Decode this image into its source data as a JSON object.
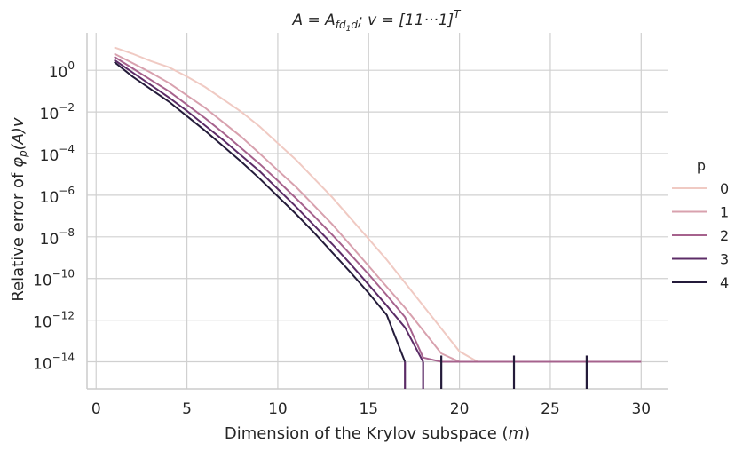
{
  "chart_data": {
    "type": "line",
    "title": {
      "prefix": "A = A",
      "sub": "fd",
      "sub2": "1",
      "sub3": "d",
      "suffix": "; v = [11···1]",
      "sup": "T"
    },
    "xlabel": {
      "text": "Dimension of the Krylov subspace (",
      "var": "m",
      "end": ")"
    },
    "ylabel": {
      "text": "Relative error of ",
      "phi": "φ",
      "sub": "p",
      "end": "(A)v"
    },
    "xlim": [
      -0.5,
      31.5
    ],
    "ylim_log10": [
      -15.3,
      1.8
    ],
    "x_ticks": [
      0,
      5,
      10,
      15,
      20,
      25,
      30
    ],
    "y_ticks": [
      {
        "base": "10",
        "exp": "0",
        "log": 0
      },
      {
        "base": "10",
        "exp": "−2",
        "log": -2
      },
      {
        "base": "10",
        "exp": "−4",
        "log": -4
      },
      {
        "base": "10",
        "exp": "−6",
        "log": -6
      },
      {
        "base": "10",
        "exp": "−8",
        "log": -8
      },
      {
        "base": "10",
        "exp": "−10",
        "log": -10
      },
      {
        "base": "10",
        "exp": "−12",
        "log": -12
      },
      {
        "base": "10",
        "exp": "−14",
        "log": -14
      }
    ],
    "grid": true,
    "legend": {
      "title": "p",
      "placement": "right"
    },
    "series": [
      {
        "name": "0",
        "color": "#f0cac3",
        "x": [
          1,
          2,
          3,
          4,
          5,
          6,
          7,
          8,
          9,
          10,
          11,
          12,
          13,
          14,
          15,
          16,
          17,
          18,
          19,
          20,
          21,
          22,
          23,
          24,
          25,
          26,
          27,
          28,
          29,
          30
        ],
        "log10_y": [
          1.1,
          0.8,
          0.45,
          0.15,
          -0.3,
          -0.8,
          -1.4,
          -2.0,
          -2.7,
          -3.5,
          -4.3,
          -5.2,
          -6.1,
          -7.1,
          -8.1,
          -9.1,
          -10.2,
          -11.3,
          -12.4,
          -13.5,
          -14.0,
          -14.0,
          -14.0,
          -14.0,
          -14.0,
          -14.0,
          -14.0,
          -14.0,
          -14.0,
          -14.0
        ]
      },
      {
        "name": "1",
        "color": "#d8a1ae",
        "x": [
          1,
          2,
          3,
          4,
          5,
          6,
          7,
          8,
          9,
          10,
          11,
          12,
          13,
          14,
          15,
          16,
          17,
          18,
          19,
          20,
          21,
          22,
          23,
          24,
          25,
          26,
          27,
          28,
          29,
          30
        ],
        "log10_y": [
          0.8,
          0.35,
          -0.1,
          -0.6,
          -1.2,
          -1.8,
          -2.5,
          -3.2,
          -4.0,
          -4.8,
          -5.6,
          -6.5,
          -7.4,
          -8.4,
          -9.4,
          -10.4,
          -11.4,
          -12.5,
          -13.6,
          -14.0,
          -14.0,
          -14.0,
          -14.0,
          -14.0,
          -14.0,
          -14.0,
          -14.0,
          -14.0,
          -14.0,
          -14.0
        ]
      },
      {
        "name": "2",
        "color": "#a6628d",
        "x": [
          1,
          2,
          3,
          4,
          5,
          6,
          7,
          8,
          9,
          10,
          11,
          12,
          13,
          14,
          15,
          16,
          17,
          18,
          19,
          20,
          21,
          22,
          23,
          24,
          25,
          26,
          27,
          28,
          29,
          30
        ],
        "log10_y": [
          0.65,
          0.1,
          -0.45,
          -1.0,
          -1.65,
          -2.3,
          -3.0,
          -3.75,
          -4.5,
          -5.3,
          -6.15,
          -7.0,
          -7.9,
          -8.85,
          -9.8,
          -10.8,
          -11.85,
          -13.8,
          -14.0,
          -14.0,
          -14.0,
          -14.0,
          -14.0,
          -14.0,
          -14.0,
          -14.0,
          -14.0,
          -14.0,
          -14.0,
          -14.0
        ]
      },
      {
        "name": "3",
        "color": "#5c2c67",
        "x": [
          1,
          2,
          3,
          4,
          5,
          6,
          7,
          8,
          9,
          10,
          11,
          12,
          13,
          14,
          15,
          16,
          17,
          18
        ],
        "log10_y": [
          0.5,
          -0.1,
          -0.7,
          -1.3,
          -1.95,
          -2.65,
          -3.35,
          -4.1,
          -4.85,
          -5.7,
          -6.55,
          -7.45,
          -8.35,
          -9.3,
          -10.3,
          -11.3,
          -12.35,
          -14.0
        ]
      },
      {
        "name": "4",
        "color": "#241b3a",
        "x": [
          1,
          2,
          3,
          4,
          5,
          6,
          7,
          8,
          9,
          10,
          11,
          12,
          13,
          14,
          15,
          16,
          17
        ],
        "log10_y": [
          0.4,
          -0.3,
          -0.9,
          -1.5,
          -2.2,
          -2.9,
          -3.65,
          -4.4,
          -5.2,
          -6.05,
          -6.9,
          -7.8,
          -8.75,
          -9.7,
          -10.7,
          -11.75,
          -14.0
        ]
      }
    ],
    "drops": [
      {
        "color": "#5c2c67",
        "x": 17,
        "from_log10": -14.0
      },
      {
        "color": "#5c2c67",
        "x": 18,
        "from_log10": -14.0
      },
      {
        "color": "#241b3a",
        "x": 19,
        "from_log10": -13.7
      },
      {
        "color": "#241b3a",
        "x": 23,
        "from_log10": -13.7
      },
      {
        "color": "#241b3a",
        "x": 27,
        "from_log10": -13.7
      }
    ]
  }
}
